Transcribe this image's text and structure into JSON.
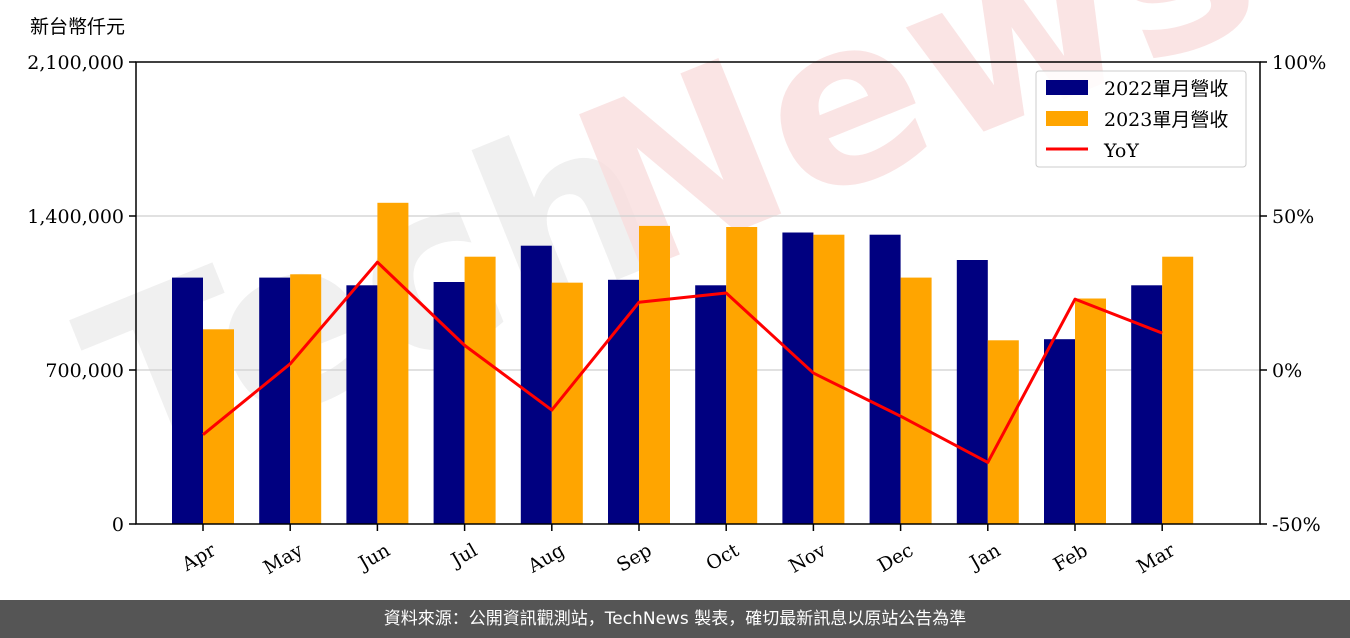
{
  "chart_data": {
    "type": "bar",
    "unit_label": "新台幣仟元",
    "categories": [
      "Apr",
      "May",
      "Jun",
      "Jul",
      "Aug",
      "Sep",
      "Oct",
      "Nov",
      "Dec",
      "Jan",
      "Feb",
      "Mar"
    ],
    "series": [
      {
        "name": "2022單月營收",
        "kind": "bar",
        "axis": "left",
        "color": "#000080",
        "values": [
          1120000,
          1120000,
          1085000,
          1100000,
          1265000,
          1110000,
          1085000,
          1325000,
          1315000,
          1200000,
          840000,
          1085000
        ]
      },
      {
        "name": "2023單月營收",
        "kind": "bar",
        "axis": "left",
        "color": "#FFA500",
        "values": [
          885000,
          1135000,
          1460000,
          1215000,
          1097000,
          1355000,
          1350000,
          1315000,
          1120000,
          835000,
          1025000,
          1215000
        ]
      },
      {
        "name": "YoY",
        "kind": "line",
        "axis": "right",
        "color": "#FF0000",
        "values": [
          -21,
          2,
          35,
          8,
          -13,
          22,
          25,
          -1,
          -15,
          -30,
          23,
          12
        ]
      }
    ],
    "y_left": {
      "range": [
        0,
        2100000
      ],
      "ticks": [
        0,
        700000,
        1400000,
        2100000
      ],
      "tick_labels": [
        "0",
        "700,000",
        "1,400,000",
        "2,100,000"
      ]
    },
    "y_right": {
      "range": [
        -50,
        100
      ],
      "ticks": [
        -50,
        0,
        50,
        100
      ],
      "tick_labels": [
        "-50%",
        "0%",
        "50%",
        "100%"
      ]
    },
    "grid": "horizontal",
    "legend_position": "top-right"
  },
  "watermark": {
    "text_main": "Tech",
    "text_accent": "News"
  },
  "footer": {
    "text": "資料來源：公開資訊觀測站，TechNews 製表，確切最新訊息以原站公告為準"
  }
}
